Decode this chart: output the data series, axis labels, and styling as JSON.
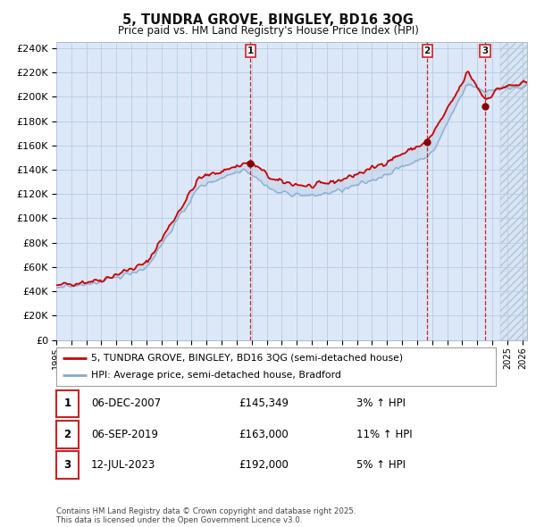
{
  "title": "5, TUNDRA GROVE, BINGLEY, BD16 3QG",
  "subtitle": "Price paid vs. HM Land Registry's House Price Index (HPI)",
  "legend_house": "5, TUNDRA GROVE, BINGLEY, BD16 3QG (semi-detached house)",
  "legend_hpi": "HPI: Average price, semi-detached house, Bradford",
  "footnote": "Contains HM Land Registry data © Crown copyright and database right 2025.\nThis data is licensed under the Open Government Licence v3.0.",
  "transactions": [
    {
      "num": 1,
      "date": "06-DEC-2007",
      "price": "£145,349",
      "hpi_pct": "3%",
      "date_x": 2007.92,
      "price_y": 145349
    },
    {
      "num": 2,
      "date": "06-SEP-2019",
      "price": "£163,000",
      "hpi_pct": "11%",
      "date_x": 2019.67,
      "price_y": 163000
    },
    {
      "num": 3,
      "date": "12-JUL-2023",
      "price": "£192,000",
      "hpi_pct": "5%",
      "date_x": 2023.53,
      "price_y": 192000
    }
  ],
  "ylim": [
    0,
    245000
  ],
  "yticks": [
    0,
    20000,
    40000,
    60000,
    80000,
    100000,
    120000,
    140000,
    160000,
    180000,
    200000,
    220000,
    240000
  ],
  "xlim_start": 1995.0,
  "xlim_end": 2026.3,
  "bg_color": "#ffffff",
  "plot_bg_color": "#dce8f8",
  "grid_color": "#b8cce4",
  "house_line_color": "#cc0000",
  "hpi_line_color": "#88aacc",
  "vline_color": "#cc0000",
  "marker_color": "#880000",
  "annotation_box_edge": "#cc2222",
  "hatch_region_start": 2024.5
}
